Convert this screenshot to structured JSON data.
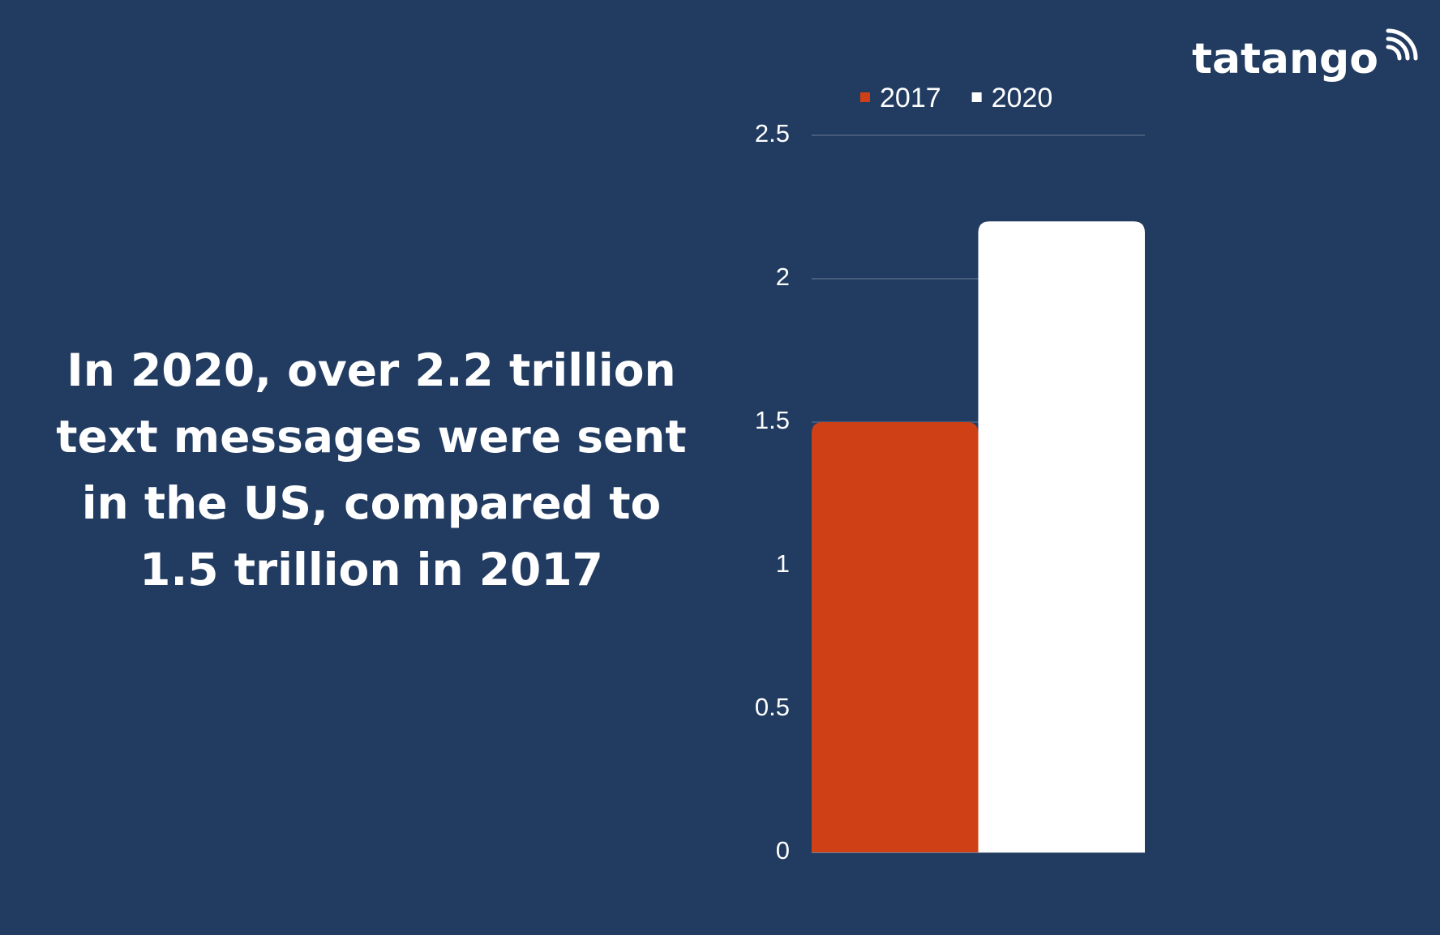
{
  "chart_data": {
    "type": "bar",
    "annotation": [
      "In 2020, over 2.2 trillion",
      "text messages were sent",
      "in the US, compared to",
      "1.5 trillion in 2017"
    ],
    "logo": "tatango",
    "categories": [
      null
    ],
    "series": [
      {
        "name": "2017",
        "color": "#d04016",
        "values": [
          1.5
        ]
      },
      {
        "name": "2020",
        "color": "#ffffff",
        "values": [
          2.2
        ]
      }
    ],
    "ylim": [
      0,
      2.5
    ],
    "yticks": [
      0,
      0.5,
      1,
      1.5,
      2,
      2.5
    ],
    "grid": true,
    "legend": "top"
  }
}
